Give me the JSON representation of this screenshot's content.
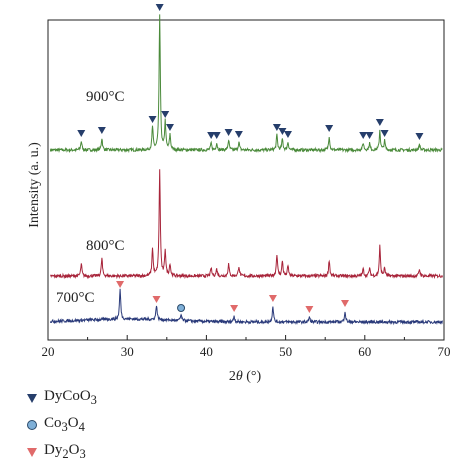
{
  "chart_data": {
    "type": "line",
    "xlabel_prefix": "2",
    "xlabel_var": "θ",
    "xlabel_unit": " (°)",
    "ylabel": "Intensity (a. u.)",
    "xlim": [
      20,
      70
    ],
    "xticks": [
      "20",
      "30",
      "40",
      "50",
      "60",
      "70"
    ],
    "grid": false,
    "legend_position": "bottom-left",
    "series": [
      {
        "name": "900°C",
        "color": "#4a8a3a",
        "peaks": [
          [
            24.2,
            9
          ],
          [
            26.8,
            12
          ],
          [
            33.2,
            23
          ],
          [
            34.1,
            135
          ],
          [
            34.8,
            28
          ],
          [
            35.4,
            15
          ],
          [
            40.6,
            7
          ],
          [
            41.3,
            7
          ],
          [
            42.8,
            10
          ],
          [
            44.1,
            8
          ],
          [
            48.9,
            15
          ],
          [
            49.6,
            11
          ],
          [
            50.3,
            8
          ],
          [
            55.5,
            14
          ],
          [
            59.8,
            7
          ],
          [
            60.6,
            7
          ],
          [
            61.9,
            20
          ],
          [
            62.5,
            9
          ],
          [
            66.9,
            6
          ]
        ]
      },
      {
        "name": "800°C",
        "color": "#a8243a",
        "peaks": [
          [
            24.2,
            12
          ],
          [
            26.8,
            18
          ],
          [
            33.2,
            28
          ],
          [
            34.1,
            105
          ],
          [
            34.8,
            26
          ],
          [
            35.4,
            12
          ],
          [
            40.6,
            8
          ],
          [
            41.3,
            7
          ],
          [
            42.8,
            12
          ],
          [
            44.1,
            10
          ],
          [
            48.9,
            22
          ],
          [
            49.6,
            15
          ],
          [
            50.3,
            10
          ],
          [
            55.5,
            16
          ],
          [
            59.8,
            7
          ],
          [
            60.6,
            8
          ],
          [
            61.9,
            30
          ],
          [
            62.5,
            8
          ],
          [
            66.9,
            7
          ]
        ]
      },
      {
        "name": "700°C",
        "color": "#2a3a7a",
        "peaks": [
          [
            29.1,
            30
          ],
          [
            33.7,
            15
          ],
          [
            36.8,
            6
          ],
          [
            43.5,
            6
          ],
          [
            48.4,
            16
          ],
          [
            53.0,
            5
          ],
          [
            57.5,
            11
          ]
        ]
      }
    ],
    "markers": [
      {
        "series": "900°C",
        "phase": "DyCoO3",
        "x": [
          24.2,
          26.8,
          33.2,
          34.1,
          34.8,
          35.4,
          40.6,
          41.3,
          42.8,
          44.1,
          48.9,
          49.6,
          50.3,
          55.5,
          59.8,
          60.6,
          61.9,
          62.5,
          66.9
        ]
      },
      {
        "series": "700°C",
        "phase": "Dy2O3",
        "x": [
          29.1,
          33.7,
          43.5,
          48.4,
          53.0,
          57.5
        ]
      },
      {
        "series": "700°C",
        "phase": "Co3O4",
        "x": [
          36.8
        ]
      }
    ],
    "legend": [
      {
        "label": "DyCoO",
        "sub": "3",
        "marker": "down-triangle",
        "color": "#263e6b"
      },
      {
        "label": "Co",
        "sub": "3",
        "label2": "O",
        "sub2": "4",
        "marker": "circle",
        "color": "#7fb0d8"
      },
      {
        "label": "Dy",
        "sub": "2",
        "label2": "O",
        "sub2": "3",
        "marker": "down-triangle",
        "color": "#e06a6a"
      }
    ]
  }
}
